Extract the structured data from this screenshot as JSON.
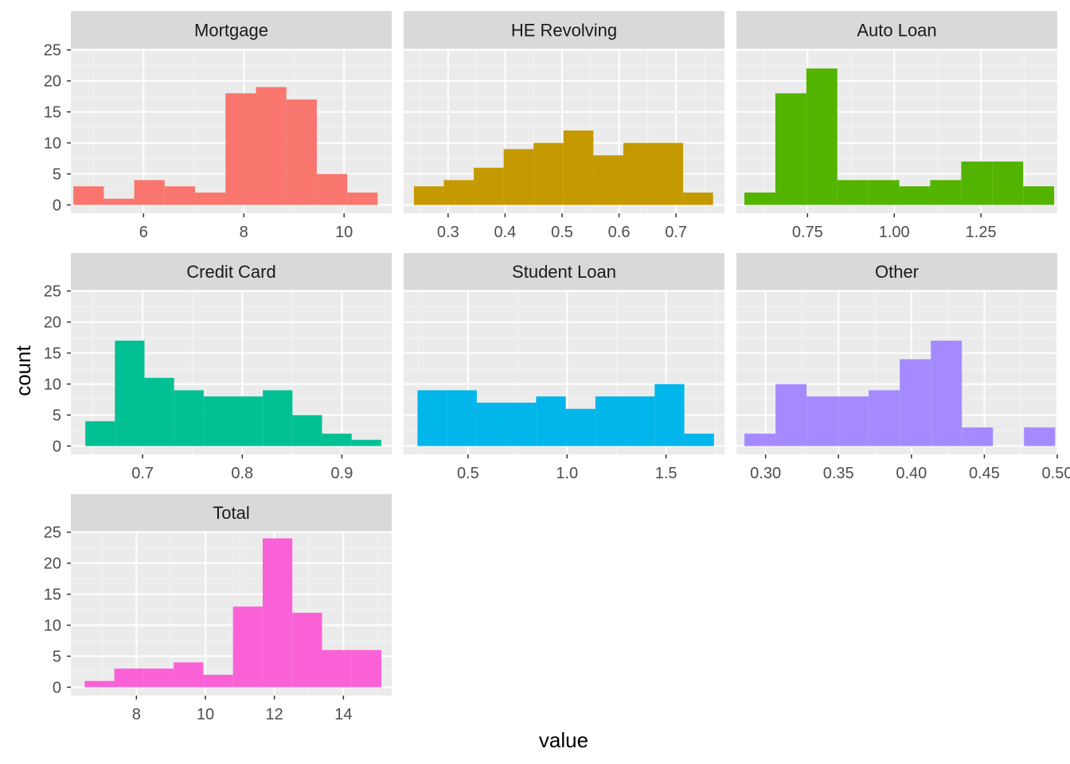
{
  "chart_data": {
    "type": "bar",
    "xlabel": "value",
    "ylabel": "count",
    "ylim": [
      0,
      25
    ],
    "y_ticks": [
      0,
      5,
      10,
      15,
      20,
      25
    ],
    "panels": [
      {
        "name": "Mortgage",
        "color": "#F8766D",
        "x_ticks": [
          6,
          8,
          10
        ],
        "xlim": [
          4.55,
          10.95
        ],
        "bin_start": 4.6,
        "bin_width": 0.607,
        "counts": [
          3,
          1,
          4,
          3,
          2,
          18,
          19,
          17,
          5,
          2
        ]
      },
      {
        "name": "HE Revolving",
        "color": "#C49A00",
        "x_ticks": [
          0.3,
          0.4,
          0.5,
          0.6,
          0.7
        ],
        "xlim": [
          0.222,
          0.785
        ],
        "bin_start": 0.24,
        "bin_width": 0.0525,
        "counts": [
          3,
          4,
          6,
          9,
          10,
          12,
          8,
          10,
          10,
          2
        ]
      },
      {
        "name": "Auto Loan",
        "color": "#53B400",
        "x_ticks": [
          0.75,
          1.0,
          1.25
        ],
        "x_tick_labels": [
          "0.75",
          "1.00",
          "1.25"
        ],
        "xlim": [
          0.545,
          1.47
        ],
        "bin_start": 0.568,
        "bin_width": 0.0893,
        "counts": [
          2,
          18,
          22,
          4,
          4,
          3,
          4,
          7,
          7,
          3
        ]
      },
      {
        "name": "Credit Card",
        "color": "#00C094",
        "x_ticks": [
          0.7,
          0.8,
          0.9
        ],
        "xlim": [
          0.628,
          0.95
        ],
        "bin_start": 0.6425,
        "bin_width": 0.0297,
        "counts": [
          4,
          17,
          11,
          9,
          8,
          8,
          9,
          5,
          2,
          1
        ]
      },
      {
        "name": "Student Loan",
        "color": "#00B6EB",
        "x_ticks": [
          0.5,
          1.0,
          1.5
        ],
        "x_tick_labels": [
          "0.5",
          "1.0",
          "1.5"
        ],
        "xlim": [
          0.175,
          1.795
        ],
        "bin_start": 0.245,
        "bin_width": 0.1497,
        "counts": [
          9,
          9,
          7,
          7,
          8,
          6,
          8,
          8,
          10,
          2
        ]
      },
      {
        "name": "Other",
        "color": "#A58AFF",
        "x_ticks": [
          0.3,
          0.35,
          0.4,
          0.45,
          0.5
        ],
        "x_tick_labels": [
          "0.30",
          "0.35",
          "0.40",
          "0.45",
          "0.50"
        ],
        "xlim": [
          0.28,
          0.5
        ],
        "bin_start": 0.2855,
        "bin_width": 0.0213,
        "counts": [
          2,
          10,
          8,
          8,
          9,
          14,
          17,
          3,
          0,
          3
        ]
      },
      {
        "name": "Total",
        "color": "#FB61D7",
        "x_ticks": [
          8,
          10,
          12,
          14
        ],
        "xlim": [
          6.1,
          15.4
        ],
        "bin_start": 6.5,
        "bin_width": 0.86,
        "counts": [
          1,
          3,
          3,
          4,
          2,
          13,
          24,
          12,
          6,
          6
        ]
      }
    ]
  }
}
